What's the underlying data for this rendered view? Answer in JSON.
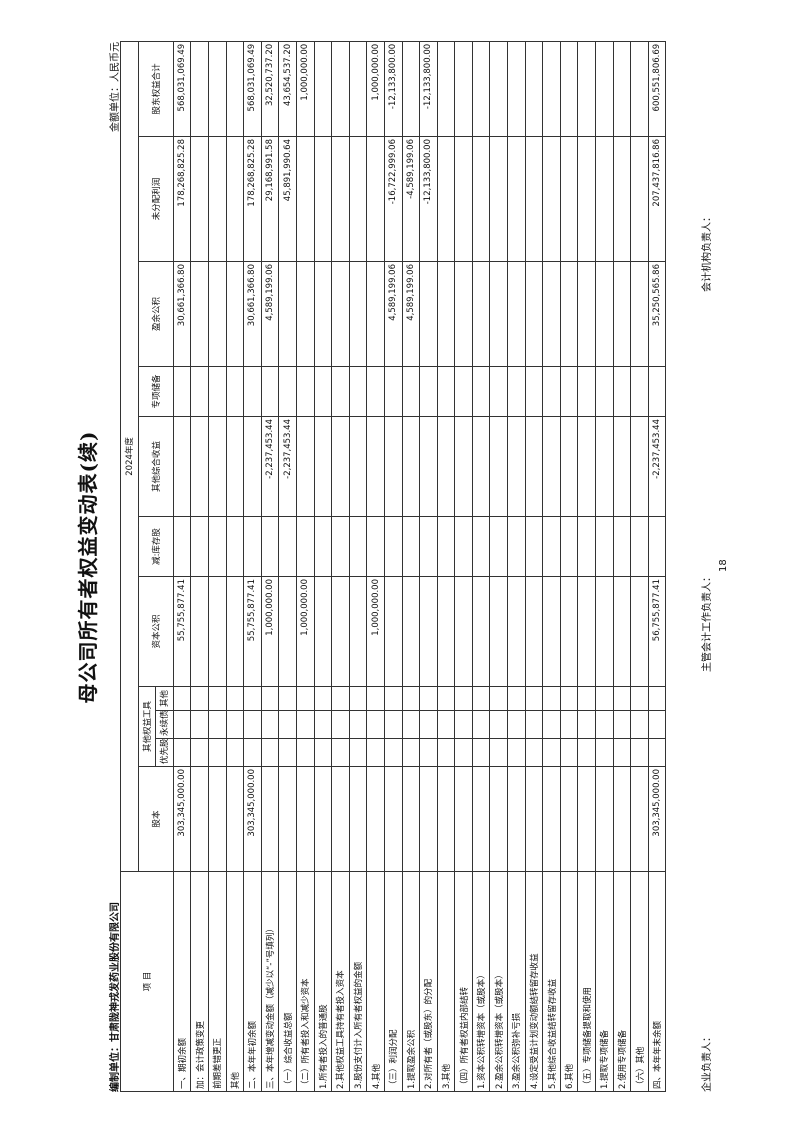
{
  "header": {
    "title": "母公司所有者权益变动表(续)",
    "unit": "金额单位：人民币元",
    "company": "编制单位：甘肃陇神戎发药业股份有限公司"
  },
  "table": {
    "item": "项 目",
    "year": "2024年度",
    "equity_instruments": "其他权益工具",
    "columns": [
      "股本",
      "优先股",
      "永续债",
      "其他",
      "资本公积",
      "减:库存股",
      "其他综合收益",
      "专项储备",
      "盈余公积",
      "未分配利润",
      "股东权益合计"
    ],
    "rows": [
      {
        "label": "一、期初余额",
        "cells": [
          "303,345,000.00",
          null,
          null,
          null,
          "55,755,877.41",
          null,
          null,
          null,
          "30,661,366.80",
          "178,268,825.28",
          "568,031,069.49"
        ]
      },
      {
        "label": "加：会计政策变更",
        "cells": [
          null,
          null,
          null,
          null,
          null,
          null,
          null,
          null,
          null,
          null,
          null
        ]
      },
      {
        "label": "前期差错更正",
        "cells": [
          null,
          null,
          null,
          null,
          null,
          null,
          null,
          null,
          null,
          null,
          null
        ]
      },
      {
        "label": "其他",
        "cells": [
          null,
          null,
          null,
          null,
          null,
          null,
          null,
          null,
          null,
          null,
          null
        ]
      },
      {
        "label": "二、本年年初余额",
        "cells": [
          "303,345,000.00",
          null,
          null,
          null,
          "55,755,877.41",
          null,
          null,
          null,
          "30,661,366.80",
          "178,268,825.28",
          "568,031,069.49"
        ]
      },
      {
        "label": "三、本年增减变动金额（减少以“-”号填列）",
        "cells": [
          null,
          null,
          null,
          null,
          "1,000,000.00",
          null,
          "-2,237,453.44",
          null,
          "4,589,199.06",
          "29,168,991.58",
          "32,520,737.20"
        ]
      },
      {
        "label": "（一）综合收益总额",
        "cells": [
          null,
          null,
          null,
          null,
          null,
          null,
          "-2,237,453.44",
          null,
          null,
          "45,891,990.64",
          "43,654,537.20"
        ]
      },
      {
        "label": "（二）所有者投入和减少资本",
        "cells": [
          null,
          null,
          null,
          null,
          "1,000,000.00",
          null,
          null,
          null,
          null,
          null,
          "1,000,000.00"
        ]
      },
      {
        "label": "1.所有者投入的普通股",
        "cells": [
          null,
          null,
          null,
          null,
          null,
          null,
          null,
          null,
          null,
          null,
          null
        ]
      },
      {
        "label": "2.其他权益工具持有者投入资本",
        "cells": [
          null,
          null,
          null,
          null,
          null,
          null,
          null,
          null,
          null,
          null,
          null
        ]
      },
      {
        "label": "3.股份支付计入所有者权益的金额",
        "cells": [
          null,
          null,
          null,
          null,
          null,
          null,
          null,
          null,
          null,
          null,
          null
        ]
      },
      {
        "label": "4.其他",
        "cells": [
          null,
          null,
          null,
          null,
          "1,000,000.00",
          null,
          null,
          null,
          null,
          null,
          "1,000,000.00"
        ]
      },
      {
        "label": "（三）利润分配",
        "cells": [
          null,
          null,
          null,
          null,
          null,
          null,
          null,
          null,
          "4,589,199.06",
          "-16,722,999.06",
          "-12,133,800.00"
        ]
      },
      {
        "label": "1.提取盈余公积",
        "cells": [
          null,
          null,
          null,
          null,
          null,
          null,
          null,
          null,
          "4,589,199.06",
          "-4,589,199.06",
          null
        ]
      },
      {
        "label": "2.对所有者（或股东）的分配",
        "cells": [
          null,
          null,
          null,
          null,
          null,
          null,
          null,
          null,
          null,
          "-12,133,800.00",
          "-12,133,800.00"
        ]
      },
      {
        "label": "3.其他",
        "cells": [
          null,
          null,
          null,
          null,
          null,
          null,
          null,
          null,
          null,
          null,
          null
        ]
      },
      {
        "label": "（四）所有者权益内部结转",
        "cells": [
          null,
          null,
          null,
          null,
          null,
          null,
          null,
          null,
          null,
          null,
          null
        ]
      },
      {
        "label": "1.资本公积转增资本（或股本）",
        "cells": [
          null,
          null,
          null,
          null,
          null,
          null,
          null,
          null,
          null,
          null,
          null
        ]
      },
      {
        "label": "2.盈余公积转增资本（或股本）",
        "cells": [
          null,
          null,
          null,
          null,
          null,
          null,
          null,
          null,
          null,
          null,
          null
        ]
      },
      {
        "label": "3.盈余公积弥补亏损",
        "cells": [
          null,
          null,
          null,
          null,
          null,
          null,
          null,
          null,
          null,
          null,
          null
        ]
      },
      {
        "label": "4.设定受益计划变动额结转留存收益",
        "cells": [
          null,
          null,
          null,
          null,
          null,
          null,
          null,
          null,
          null,
          null,
          null
        ]
      },
      {
        "label": "5.其他综合收益结转留存收益",
        "cells": [
          null,
          null,
          null,
          null,
          null,
          null,
          null,
          null,
          null,
          null,
          null
        ]
      },
      {
        "label": "6.其他",
        "cells": [
          null,
          null,
          null,
          null,
          null,
          null,
          null,
          null,
          null,
          null,
          null
        ]
      },
      {
        "label": "（五）专项储备提取和使用",
        "cells": [
          null,
          null,
          null,
          null,
          null,
          null,
          null,
          null,
          null,
          null,
          null
        ]
      },
      {
        "label": "1.提取专项储备",
        "cells": [
          null,
          null,
          null,
          null,
          null,
          null,
          null,
          null,
          null,
          null,
          null
        ]
      },
      {
        "label": "2.使用专项储备",
        "cells": [
          null,
          null,
          null,
          null,
          null,
          null,
          null,
          null,
          null,
          null,
          null
        ]
      },
      {
        "label": "（六）其他",
        "cells": [
          null,
          null,
          null,
          null,
          null,
          null,
          null,
          null,
          null,
          null,
          null
        ]
      },
      {
        "label": "四、本年年末余额",
        "cells": [
          "303,345,000.00",
          null,
          null,
          null,
          "56,755,877.41",
          null,
          "-2,237,453.44",
          null,
          "35,250,565.86",
          "207,437,816.86",
          "600,551,806.69"
        ]
      }
    ]
  },
  "footer": {
    "legal_rep": "企业负责人：",
    "accounting_head": "主管会计工作负责人：",
    "accounting_dept": "会计机构负责人：",
    "page": "18"
  }
}
